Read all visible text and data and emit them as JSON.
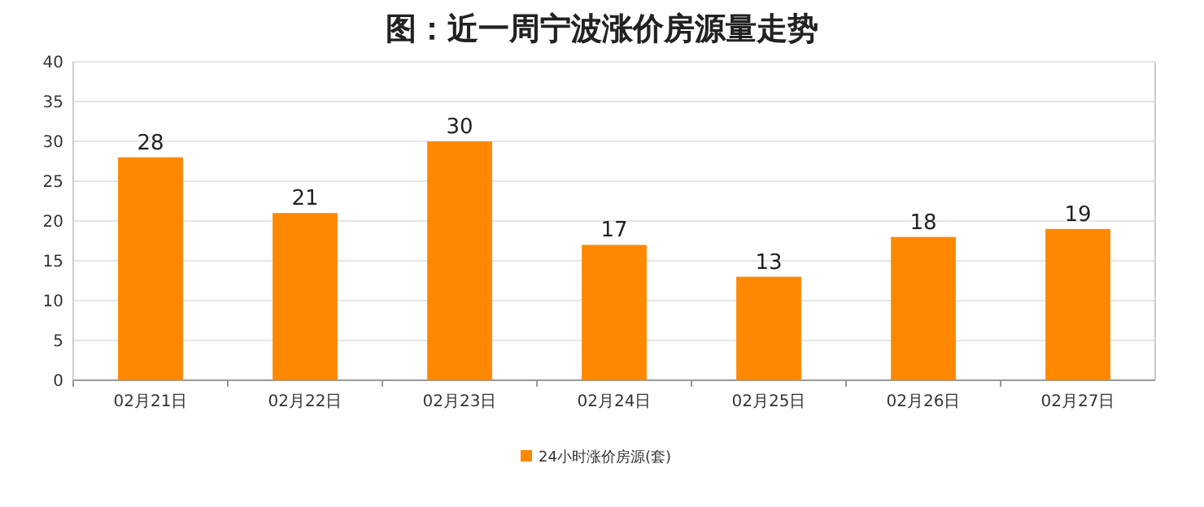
{
  "chart_data": {
    "type": "bar",
    "title": "图：近一周宁波涨价房源量走势",
    "categories": [
      "02月21日",
      "02月22日",
      "02月23日",
      "02月24日",
      "02月25日",
      "02月26日",
      "02月27日"
    ],
    "series": [
      {
        "name": "24小时涨价房源(套)",
        "color": "#ff8800",
        "values": [
          28,
          21,
          30,
          17,
          13,
          18,
          19
        ]
      }
    ],
    "ylim": [
      0,
      40
    ],
    "yticks": [
      0,
      5,
      10,
      15,
      20,
      25,
      30,
      35,
      40
    ],
    "grid": "y",
    "data_labels": true,
    "legend": "bottom"
  }
}
